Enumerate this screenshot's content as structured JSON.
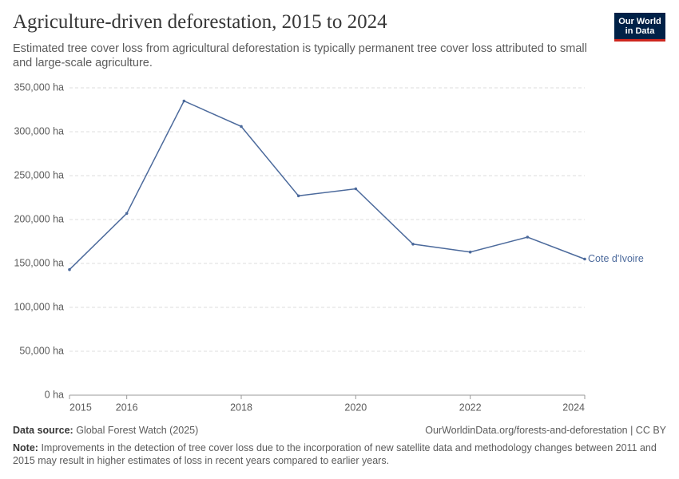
{
  "logo": [
    "Our World",
    "in Data"
  ],
  "chart_data": {
    "type": "line",
    "title": "Agriculture-driven deforestation, 2015 to 2024",
    "subtitle": "Estimated tree cover loss from agricultural deforestation is typically permanent tree cover loss attributed to small and large-scale agriculture.",
    "x": [
      2015,
      2016,
      2017,
      2018,
      2019,
      2020,
      2021,
      2022,
      2023,
      2024
    ],
    "series": [
      {
        "name": "Cote d'Ivoire",
        "color": "#4c6a9c",
        "values": [
          143000,
          207000,
          335000,
          306000,
          227000,
          235000,
          172000,
          163000,
          180000,
          155000
        ]
      }
    ],
    "xlim": [
      2015,
      2024
    ],
    "xticks": [
      2015,
      2016,
      2018,
      2020,
      2022,
      2024
    ],
    "ylim": [
      0,
      350000
    ],
    "yticks": [
      {
        "value": 0,
        "label": "0 ha"
      },
      {
        "value": 50000,
        "label": "50,000 ha"
      },
      {
        "value": 100000,
        "label": "100,000 ha"
      },
      {
        "value": 150000,
        "label": "150,000 ha"
      },
      {
        "value": 200000,
        "label": "200,000 ha"
      },
      {
        "value": 250000,
        "label": "250,000 ha"
      },
      {
        "value": 300000,
        "label": "300,000 ha"
      },
      {
        "value": 350000,
        "label": "350,000 ha"
      }
    ],
    "grid": true,
    "source_label": "Data source:",
    "source": "Global Forest Watch (2025)",
    "url_line": "OurWorldinData.org/forests-and-deforestation | CC BY",
    "note_label": "Note:",
    "note": "Improvements in the detection of tree cover loss due to the incorporation of new satellite data and methodology changes between 2011 and 2015 may result in higher estimates of loss in recent years compared to earlier years."
  }
}
